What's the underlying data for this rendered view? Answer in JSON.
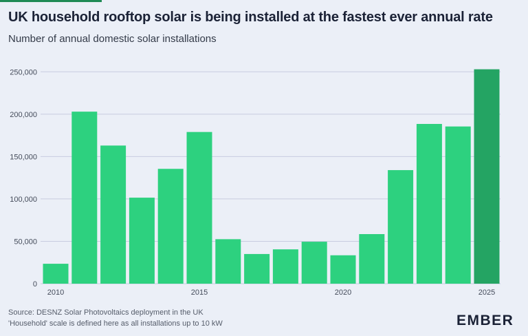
{
  "header": {
    "title": "UK household rooftop solar is being installed at the fastest ever annual rate",
    "subtitle": "Number of annual domestic solar installations"
  },
  "footer": {
    "source": "Source: DESNZ Solar Photovoltaics deployment in the UK",
    "note": "'Household' scale is defined here as all installations up to 10 kW",
    "logo": "EMBER"
  },
  "colors": {
    "bar": "#2dd17f",
    "bar_highlight": "#24a463",
    "grid": "#c7cbe0",
    "axis_text": "#444b5a",
    "background": "#ebeff7"
  },
  "chart_data": {
    "type": "bar",
    "x": [
      2010,
      2011,
      2012,
      2013,
      2014,
      2015,
      2016,
      2017,
      2018,
      2019,
      2020,
      2021,
      2022,
      2023,
      2024,
      2025
    ],
    "values": [
      23500,
      203000,
      163000,
      101500,
      135500,
      179000,
      52500,
      35000,
      40500,
      49500,
      33500,
      58500,
      134000,
      188500,
      185500,
      253000
    ],
    "highlight_index": 15,
    "xticks": [
      2010,
      2015,
      2020,
      2025
    ],
    "ylim": [
      0,
      260000
    ],
    "yticks": [
      0,
      50000,
      100000,
      150000,
      200000,
      250000
    ],
    "ytick_labels": [
      "0",
      "50,000",
      "100,000",
      "150,000",
      "200,000",
      "250,000"
    ],
    "grid": true,
    "legend": "none"
  }
}
